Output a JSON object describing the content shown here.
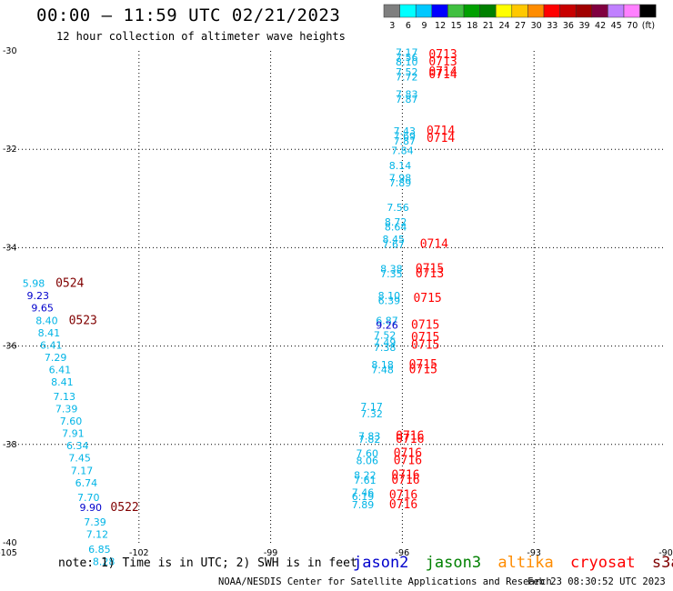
{
  "header": {
    "title": "00:00 – 11:59 UTC 02/21/2023",
    "subtitle": "12 hour collection of altimeter wave heights"
  },
  "colorbar": {
    "swatches": [
      "#7f7f7f",
      "#00ffff",
      "#00c8ff",
      "#0000ff",
      "#40c040",
      "#00a000",
      "#008000",
      "#ffff00",
      "#ffc800",
      "#ff8c00",
      "#ff0000",
      "#c80000",
      "#a00000",
      "#800040",
      "#c080ff",
      "#ff80ff",
      "#000000"
    ],
    "labels": [
      "3",
      "6",
      "9",
      "12",
      "15",
      "18",
      "21",
      "24",
      "27",
      "30",
      "33",
      "36",
      "39",
      "42",
      "45",
      "70",
      "(ft)"
    ]
  },
  "footer": {
    "note": "note: 1) Time is in UTC; 2) SWH is in feet",
    "credit": "NOAA/NESDIS Center for Satellite Applications and Research",
    "timestamp": "Feb 23 08:30:52 UTC 2023"
  },
  "satellites": [
    {
      "name": "jason2",
      "color": "#0000cc"
    },
    {
      "name": "jason3",
      "color": "#008000"
    },
    {
      "name": "altika",
      "color": "#ff8c00"
    },
    {
      "name": "cryosat",
      "color": "#ff0000"
    },
    {
      "name": "s3a",
      "color": "#800000"
    }
  ],
  "chart_data": {
    "type": "scatter",
    "title": "00:00 – 11:59 UTC 02/21/2023",
    "subtitle": "12 hour collection of altimeter wave heights",
    "xlabel": "",
    "ylabel": "",
    "xlim": [
      -105,
      -90
    ],
    "ylim": [
      -40,
      -30
    ],
    "xticks": [
      "-105",
      "-102",
      "-99",
      "-96",
      "-93",
      "-90"
    ],
    "yticks": [
      "-30",
      "-32",
      "-34",
      "-36",
      "-38",
      "-40"
    ],
    "grid": true,
    "swh_labels": [
      {
        "x": -95.9,
        "y": -30.1,
        "text": "7.17",
        "color": "#00b4e6"
      },
      {
        "x": -95.9,
        "y": -30.2,
        "text": "7.56",
        "color": "#00b4e6"
      },
      {
        "x": -95.9,
        "y": -30.3,
        "text": "8.10",
        "color": "#00b4e6"
      },
      {
        "x": -95.9,
        "y": -30.5,
        "text": "7.52",
        "color": "#00b4e6"
      },
      {
        "x": -95.9,
        "y": -30.6,
        "text": "7.72",
        "color": "#00b4e6"
      },
      {
        "x": -95.9,
        "y": -30.95,
        "text": "7.83",
        "color": "#00b4e6"
      },
      {
        "x": -95.9,
        "y": -31.05,
        "text": "7.87",
        "color": "#00b4e6"
      },
      {
        "x": -95.95,
        "y": -31.7,
        "text": "7.43",
        "color": "#00b4e6"
      },
      {
        "x": -95.95,
        "y": -31.8,
        "text": "7.69",
        "color": "#00b4e6"
      },
      {
        "x": -95.95,
        "y": -31.9,
        "text": "7.87",
        "color": "#00b4e6"
      },
      {
        "x": -96.0,
        "y": -32.1,
        "text": "7.84",
        "color": "#00b4e6"
      },
      {
        "x": -96.05,
        "y": -32.4,
        "text": "8.14",
        "color": "#00b4e6"
      },
      {
        "x": -96.05,
        "y": -32.65,
        "text": "7.98",
        "color": "#00b4e6"
      },
      {
        "x": -96.05,
        "y": -32.75,
        "text": "7.89",
        "color": "#00b4e6"
      },
      {
        "x": -96.1,
        "y": -33.25,
        "text": "7.56",
        "color": "#00b4e6"
      },
      {
        "x": -96.15,
        "y": -33.55,
        "text": "8.72",
        "color": "#00b4e6"
      },
      {
        "x": -96.15,
        "y": -33.65,
        "text": "8.64",
        "color": "#00b4e6"
      },
      {
        "x": -96.2,
        "y": -33.9,
        "text": "8.45",
        "color": "#00b4e6"
      },
      {
        "x": -96.2,
        "y": -34.0,
        "text": "7.67",
        "color": "#00b4e6"
      },
      {
        "x": -96.25,
        "y": -34.5,
        "text": "8.38",
        "color": "#00b4e6"
      },
      {
        "x": -96.25,
        "y": -34.6,
        "text": "7.35",
        "color": "#00b4e6"
      },
      {
        "x": -96.3,
        "y": -35.05,
        "text": "8.10",
        "color": "#00b4e6"
      },
      {
        "x": -96.3,
        "y": -35.15,
        "text": "6.39",
        "color": "#00b4e6"
      },
      {
        "x": -96.35,
        "y": -35.55,
        "text": "6.87",
        "color": "#00b4e6"
      },
      {
        "x": -96.35,
        "y": -35.65,
        "text": "9.26",
        "color": "#0000cc"
      },
      {
        "x": -96.4,
        "y": -35.85,
        "text": "7.52",
        "color": "#00b4e6"
      },
      {
        "x": -96.4,
        "y": -36.0,
        "text": "7.49",
        "color": "#00b4e6"
      },
      {
        "x": -96.4,
        "y": -36.1,
        "text": "7.38",
        "color": "#00b4e6"
      },
      {
        "x": -96.45,
        "y": -36.45,
        "text": "8.18",
        "color": "#00b4e6"
      },
      {
        "x": -96.45,
        "y": -36.55,
        "text": "7.48",
        "color": "#00b4e6"
      },
      {
        "x": -96.7,
        "y": -37.3,
        "text": "7.17",
        "color": "#00b4e6"
      },
      {
        "x": -96.7,
        "y": -37.45,
        "text": "7.32",
        "color": "#00b4e6"
      },
      {
        "x": -96.75,
        "y": -37.9,
        "text": "7.83",
        "color": "#00b4e6"
      },
      {
        "x": -96.75,
        "y": -37.97,
        "text": "7.82",
        "color": "#00b4e6"
      },
      {
        "x": -96.8,
        "y": -38.25,
        "text": "7.60",
        "color": "#00b4e6"
      },
      {
        "x": -96.8,
        "y": -38.4,
        "text": "8.06",
        "color": "#00b4e6"
      },
      {
        "x": -96.85,
        "y": -38.7,
        "text": "8.22",
        "color": "#00b4e6"
      },
      {
        "x": -96.85,
        "y": -38.8,
        "text": "7.61",
        "color": "#00b4e6"
      },
      {
        "x": -96.9,
        "y": -39.05,
        "text": "7.46",
        "color": "#00b4e6"
      },
      {
        "x": -96.9,
        "y": -39.13,
        "text": "6.19",
        "color": "#00b4e6"
      },
      {
        "x": -96.9,
        "y": -39.3,
        "text": "7.89",
        "color": "#00b4e6"
      },
      {
        "x": -104.4,
        "y": -34.8,
        "text": "5.98",
        "color": "#00b4e6"
      },
      {
        "x": -104.3,
        "y": -35.05,
        "text": "9.23",
        "color": "#0000cc"
      },
      {
        "x": -104.2,
        "y": -35.3,
        "text": "9.65",
        "color": "#0000cc"
      },
      {
        "x": -104.1,
        "y": -35.55,
        "text": "8.40",
        "color": "#00b4e6"
      },
      {
        "x": -104.05,
        "y": -35.8,
        "text": "8.41",
        "color": "#00b4e6"
      },
      {
        "x": -104.0,
        "y": -36.05,
        "text": "6.41",
        "color": "#00b4e6"
      },
      {
        "x": -103.9,
        "y": -36.3,
        "text": "7.29",
        "color": "#00b4e6"
      },
      {
        "x": -103.8,
        "y": -36.55,
        "text": "6.41",
        "color": "#00b4e6"
      },
      {
        "x": -103.75,
        "y": -36.8,
        "text": "8.41",
        "color": "#00b4e6"
      },
      {
        "x": -103.7,
        "y": -37.1,
        "text": "7.13",
        "color": "#00b4e6"
      },
      {
        "x": -103.65,
        "y": -37.35,
        "text": "7.39",
        "color": "#00b4e6"
      },
      {
        "x": -103.55,
        "y": -37.6,
        "text": "7.60",
        "color": "#00b4e6"
      },
      {
        "x": -103.5,
        "y": -37.85,
        "text": "7.91",
        "color": "#00b4e6"
      },
      {
        "x": -103.4,
        "y": -38.1,
        "text": "6.34",
        "color": "#00b4e6"
      },
      {
        "x": -103.35,
        "y": -38.35,
        "text": "7.45",
        "color": "#00b4e6"
      },
      {
        "x": -103.3,
        "y": -38.6,
        "text": "7.17",
        "color": "#00b4e6"
      },
      {
        "x": -103.2,
        "y": -38.85,
        "text": "6.74",
        "color": "#00b4e6"
      },
      {
        "x": -103.15,
        "y": -39.15,
        "text": "7.70",
        "color": "#00b4e6"
      },
      {
        "x": -103.1,
        "y": -39.35,
        "text": "9.90",
        "color": "#0000cc"
      },
      {
        "x": -103.0,
        "y": -39.65,
        "text": "7.39",
        "color": "#00b4e6"
      },
      {
        "x": -102.95,
        "y": -39.9,
        "text": "7.12",
        "color": "#00b4e6"
      },
      {
        "x": -102.9,
        "y": -40.2,
        "text": "6.85",
        "color": "#00b4e6"
      },
      {
        "x": -102.8,
        "y": -40.45,
        "text": "8.28",
        "color": "#00b4e6"
      }
    ],
    "time_labels": [
      {
        "x": -95.4,
        "y": -30.15,
        "text": "0713",
        "color": "#ff0000"
      },
      {
        "x": -95.4,
        "y": -30.3,
        "text": "0713",
        "color": "#ff0000"
      },
      {
        "x": -95.4,
        "y": -30.5,
        "text": "0714",
        "color": "#ff0000"
      },
      {
        "x": -95.4,
        "y": -30.55,
        "text": "0714",
        "color": "#ff0000"
      },
      {
        "x": -95.45,
        "y": -31.7,
        "text": "0714",
        "color": "#ff0000"
      },
      {
        "x": -95.45,
        "y": -31.85,
        "text": "0714",
        "color": "#ff0000"
      },
      {
        "x": -95.6,
        "y": -34.0,
        "text": "0714",
        "color": "#ff0000"
      },
      {
        "x": -95.7,
        "y": -34.5,
        "text": "0715",
        "color": "#ff0000"
      },
      {
        "x": -95.7,
        "y": -34.6,
        "text": "0713",
        "color": "#ff0000"
      },
      {
        "x": -95.75,
        "y": -35.1,
        "text": "0715",
        "color": "#ff0000"
      },
      {
        "x": -95.8,
        "y": -35.65,
        "text": "0715",
        "color": "#ff0000"
      },
      {
        "x": -95.8,
        "y": -35.9,
        "text": "0715",
        "color": "#ff0000"
      },
      {
        "x": -95.8,
        "y": -36.05,
        "text": "0715",
        "color": "#ff0000"
      },
      {
        "x": -95.85,
        "y": -36.45,
        "text": "0715",
        "color": "#ff0000"
      },
      {
        "x": -95.85,
        "y": -36.55,
        "text": "0715",
        "color": "#ff0000"
      },
      {
        "x": -96.15,
        "y": -37.9,
        "text": "0716",
        "color": "#ff0000"
      },
      {
        "x": -96.15,
        "y": -37.97,
        "text": "0716",
        "color": "#ff0000"
      },
      {
        "x": -96.2,
        "y": -38.25,
        "text": "0716",
        "color": "#ff0000"
      },
      {
        "x": -96.2,
        "y": -38.4,
        "text": "0716",
        "color": "#ff0000"
      },
      {
        "x": -96.25,
        "y": -38.7,
        "text": "0716",
        "color": "#ff0000"
      },
      {
        "x": -96.25,
        "y": -38.8,
        "text": "0716",
        "color": "#ff0000"
      },
      {
        "x": -96.3,
        "y": -39.1,
        "text": "0716",
        "color": "#ff0000"
      },
      {
        "x": -96.3,
        "y": -39.3,
        "text": "0716",
        "color": "#ff0000"
      },
      {
        "x": -103.9,
        "y": -34.8,
        "text": "0524",
        "color": "#800000"
      },
      {
        "x": -103.6,
        "y": -35.55,
        "text": "0523",
        "color": "#800000"
      },
      {
        "x": -102.65,
        "y": -39.35,
        "text": "0522",
        "color": "#800000"
      }
    ]
  }
}
